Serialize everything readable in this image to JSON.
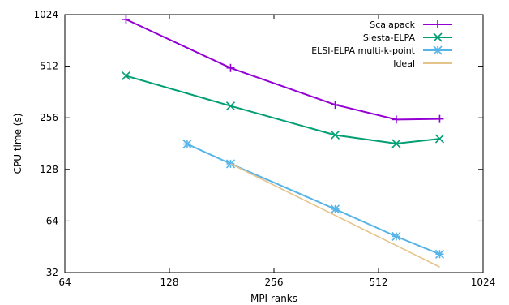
{
  "chart_data": {
    "type": "line",
    "xscale": "log2",
    "yscale": "log2",
    "xlim": [
      64,
      1024
    ],
    "ylim": [
      32,
      1024
    ],
    "xticks": [
      64,
      128,
      256,
      512,
      1024
    ],
    "yticks": [
      32,
      64,
      128,
      256,
      512,
      1024
    ],
    "xlabel": "MPI ranks",
    "ylabel": "CPU time (s)",
    "legend_position": "top-right",
    "series": [
      {
        "name": "Scalapack",
        "color": "#9400d3",
        "marker": "plus",
        "x": [
          96,
          192,
          384,
          576,
          768
        ],
        "y": [
          960,
          500,
          305,
          250,
          252
        ]
      },
      {
        "name": "Siesta-ELPA",
        "color": "#009e73",
        "marker": "x",
        "x": [
          96,
          192,
          384,
          576,
          768
        ],
        "y": [
          450,
          300,
          203,
          181,
          193
        ]
      },
      {
        "name": "ELSI-ELPA multi-k-point",
        "color": "#56b4e9",
        "marker": "star",
        "x": [
          144,
          192,
          384,
          576,
          768
        ],
        "y": [
          180,
          138,
          75,
          52,
          41
        ]
      },
      {
        "name": "Ideal",
        "color": "#e6c38a",
        "marker": "none",
        "x": [
          192,
          768
        ],
        "y": [
          138,
          34.5
        ]
      }
    ]
  }
}
